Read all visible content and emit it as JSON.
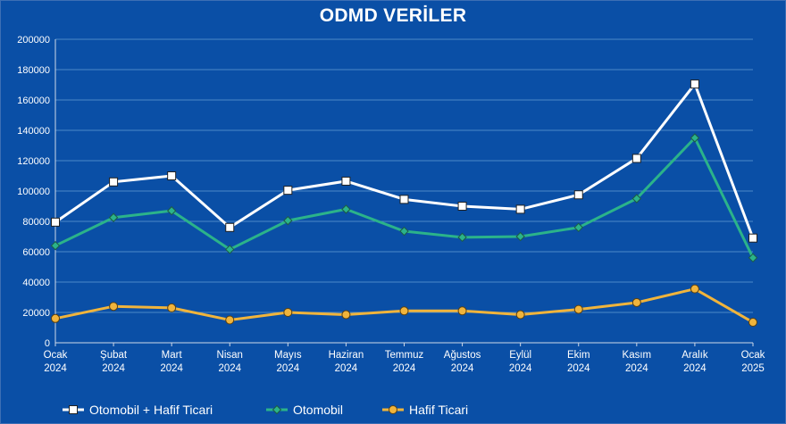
{
  "chart_data": {
    "type": "line",
    "title": "ODMD VERİLER",
    "categories": [
      [
        "Ocak",
        "2024"
      ],
      [
        "Şubat",
        "2024"
      ],
      [
        "Mart",
        "2024"
      ],
      [
        "Nisan",
        "2024"
      ],
      [
        "Mayıs",
        "2024"
      ],
      [
        "Haziran",
        "2024"
      ],
      [
        "Temmuz",
        "2024"
      ],
      [
        "Ağustos",
        "2024"
      ],
      [
        "Eylül",
        "2024"
      ],
      [
        "Ekim",
        "2024"
      ],
      [
        "Kasım",
        "2024"
      ],
      [
        "Aralık",
        "2024"
      ],
      [
        "Ocak",
        "2025"
      ]
    ],
    "ylim": [
      0,
      200000
    ],
    "yticks": [
      "0",
      "20000",
      "40000",
      "60000",
      "80000",
      "100000",
      "120000",
      "140000",
      "160000",
      "180000",
      "200000"
    ],
    "grid": true,
    "legend_position": "bottom-left",
    "series": [
      {
        "name": "Otomobil + Hafif Ticari",
        "color": "#ffffff",
        "marker": "square",
        "values": [
          79500,
          106000,
          110000,
          76000,
          100500,
          106500,
          94500,
          90000,
          88000,
          97500,
          121500,
          170500,
          69000
        ]
      },
      {
        "name": "Otomobil",
        "color": "#2bb38a",
        "marker": "diamond",
        "values": [
          64000,
          82500,
          87000,
          61500,
          80500,
          88000,
          73500,
          69500,
          70000,
          76000,
          95000,
          135000,
          56000
        ]
      },
      {
        "name": "Hafif Ticari",
        "color": "#f0b43c",
        "marker": "circle",
        "values": [
          16000,
          24000,
          23000,
          15000,
          20000,
          18500,
          21000,
          21000,
          18500,
          22000,
          26500,
          35500,
          13500
        ]
      }
    ]
  }
}
